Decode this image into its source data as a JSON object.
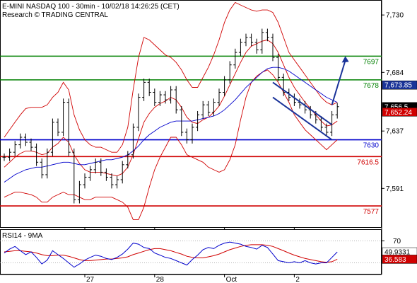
{
  "header": {
    "line1": "E-MINI NASDAQ 100 - 30min - 10/02/18 14:26:25 (CET)",
    "line2": "Research © TRADING CENTRAL"
  },
  "chart_data": [
    {
      "type": "line",
      "title": "E-MINI NASDAQ 100 - 30min - 10/02/18 14:26:25 (CET)",
      "ylim": [
        7560,
        7742
      ],
      "y_ticks": [
        {
          "label": "7,730",
          "value": 7730
        },
        {
          "label": "7,684",
          "value": 7684
        },
        {
          "label": "7,637",
          "value": 7637
        },
        {
          "label": "7,591",
          "value": 7591
        }
      ],
      "x_ticks": [
        {
          "label": "27",
          "index": 15
        },
        {
          "label": "28",
          "index": 28
        },
        {
          "label": "Oct",
          "index": 41
        },
        {
          "label": "2",
          "index": 54
        }
      ],
      "n_bars": 63,
      "close": [
        7616,
        7620,
        7626,
        7632,
        7628,
        7624,
        7612,
        7602,
        7620,
        7644,
        7636,
        7660,
        7620,
        7582,
        7594,
        7600,
        7606,
        7612,
        7604,
        7600,
        7594,
        7598,
        7610,
        7618,
        7640,
        7664,
        7676,
        7668,
        7660,
        7666,
        7662,
        7670,
        7654,
        7636,
        7630,
        7640,
        7650,
        7658,
        7652,
        7660,
        7668,
        7678,
        7690,
        7700,
        7708,
        7712,
        7708,
        7702,
        7716,
        7712,
        7696,
        7680,
        7668,
        7664,
        7660,
        7658,
        7654,
        7650,
        7646,
        7640,
        7636,
        7650,
        7656.5
      ],
      "ma_blue": [
        7596,
        7599,
        7602,
        7604,
        7606,
        7607,
        7608,
        7608,
        7609,
        7610,
        7611,
        7612,
        7612,
        7611,
        7610,
        7610,
        7611,
        7612,
        7613,
        7614,
        7614,
        7615,
        7616,
        7618,
        7621,
        7625,
        7630,
        7634,
        7637,
        7640,
        7642,
        7644,
        7645,
        7645,
        7645,
        7645,
        7646,
        7647,
        7648,
        7649,
        7651,
        7654,
        7658,
        7662,
        7667,
        7672,
        7676,
        7680,
        7684,
        7687,
        7688,
        7688,
        7687,
        7685,
        7682,
        7679,
        7676,
        7673,
        7670,
        7667,
        7664,
        7662,
        7660
      ],
      "ma_red": [
        7608,
        7612,
        7616,
        7619,
        7621,
        7621,
        7620,
        7618,
        7619,
        7624,
        7627,
        7632,
        7628,
        7618,
        7611,
        7606,
        7604,
        7604,
        7604,
        7603,
        7602,
        7601,
        7603,
        7608,
        7618,
        7631,
        7644,
        7651,
        7656,
        7659,
        7661,
        7664,
        7662,
        7656,
        7648,
        7644,
        7643,
        7646,
        7648,
        7652,
        7657,
        7665,
        7674,
        7683,
        7692,
        7700,
        7705,
        7707,
        7709,
        7710,
        7707,
        7700,
        7690,
        7680,
        7672,
        7666,
        7660,
        7655,
        7650,
        7645,
        7641,
        7642,
        7645
      ],
      "boll_upper": [
        7632,
        7638,
        7644,
        7650,
        7655,
        7656,
        7656,
        7656,
        7658,
        7664,
        7668,
        7676,
        7670,
        7650,
        7638,
        7630,
        7626,
        7624,
        7624,
        7622,
        7620,
        7620,
        7626,
        7640,
        7670,
        7696,
        7712,
        7710,
        7706,
        7702,
        7698,
        7696,
        7692,
        7686,
        7678,
        7672,
        7672,
        7680,
        7688,
        7698,
        7710,
        7724,
        7734,
        7740,
        7738,
        7736,
        7734,
        7733,
        7734,
        7734,
        7732,
        7724,
        7712,
        7700,
        7694,
        7688,
        7682,
        7676,
        7670,
        7664,
        7660,
        7658,
        7660
      ],
      "boll_lower": [
        7584,
        7586,
        7588,
        7588,
        7587,
        7586,
        7584,
        7580,
        7580,
        7584,
        7586,
        7588,
        7586,
        7586,
        7584,
        7582,
        7582,
        7584,
        7584,
        7584,
        7584,
        7582,
        7580,
        7576,
        7566,
        7566,
        7576,
        7592,
        7606,
        7616,
        7624,
        7632,
        7632,
        7626,
        7618,
        7616,
        7614,
        7612,
        7608,
        7606,
        7604,
        7606,
        7614,
        7626,
        7646,
        7664,
        7676,
        7681,
        7684,
        7686,
        7682,
        7676,
        7668,
        7660,
        7650,
        7644,
        7638,
        7634,
        7630,
        7626,
        7622,
        7626,
        7630
      ],
      "levels": [
        {
          "value": 7697,
          "label": "7697",
          "color": "#008000"
        },
        {
          "value": 7678,
          "label": "7678",
          "color": "#008000"
        },
        {
          "value": 7630,
          "label": "7630",
          "color": "#0000cc"
        },
        {
          "value": 7616.5,
          "label": "7616.5",
          "color": "#d00000"
        },
        {
          "value": 7577,
          "label": "7577",
          "color": "#d00000"
        }
      ],
      "price_badges": [
        {
          "label": "7,673.85",
          "value": 7673.85,
          "bg": "#1a3399",
          "fg": "#ffffff"
        },
        {
          "label": "7,656.5",
          "value": 7656.5,
          "bg": "#000000",
          "fg": "#ffffff"
        },
        {
          "label": "7,652.24",
          "value": 7652.24,
          "bg": "#d00000",
          "fg": "#ffffff"
        }
      ],
      "channel": {
        "from_index": 50,
        "to_index": 61,
        "upper": [
          7676,
          7642
        ],
        "lower": [
          7664,
          7630
        ]
      },
      "forecast_arrow": {
        "from": [
          61,
          7658
        ],
        "to": [
          63.5,
          7697
        ]
      }
    },
    {
      "type": "line",
      "title": "RSI14 - 9MA",
      "ylim": [
        10,
        90
      ],
      "y_ticks": [
        {
          "label": "70",
          "value": 70
        }
      ],
      "rsi": [
        48,
        55,
        60,
        52,
        45,
        50,
        40,
        28,
        35,
        52,
        45,
        38,
        30,
        22,
        28,
        35,
        40,
        44,
        42,
        38,
        36,
        40,
        46,
        55,
        66,
        64,
        58,
        56,
        48,
        44,
        40,
        38,
        34,
        30,
        26,
        36,
        44,
        54,
        58,
        56,
        62,
        66,
        68,
        66,
        64,
        60,
        58,
        55,
        62,
        58,
        46,
        34,
        32,
        30,
        32,
        30,
        34,
        30,
        28,
        30,
        30,
        40,
        49.93
      ],
      "rsi_ma": [
        50,
        51,
        52,
        52,
        51,
        50,
        48,
        45,
        43,
        43,
        44,
        44,
        42,
        39,
        36,
        34,
        34,
        35,
        36,
        37,
        37,
        38,
        39,
        41,
        45,
        48,
        51,
        54,
        56,
        56,
        54,
        52,
        49,
        46,
        42,
        40,
        39,
        39,
        41,
        43,
        46,
        50,
        54,
        57,
        60,
        62,
        63,
        63,
        63,
        62,
        60,
        56,
        52,
        48,
        44,
        41,
        38,
        36,
        34,
        32,
        31,
        32,
        36.58
      ],
      "badges": [
        {
          "label": "49.9331",
          "value": 49.93,
          "bg": "#ffffff",
          "fg": "#000000"
        },
        {
          "label": "36.583",
          "value": 36.58,
          "bg": "#d00000",
          "fg": "#ffffff"
        }
      ]
    }
  ]
}
